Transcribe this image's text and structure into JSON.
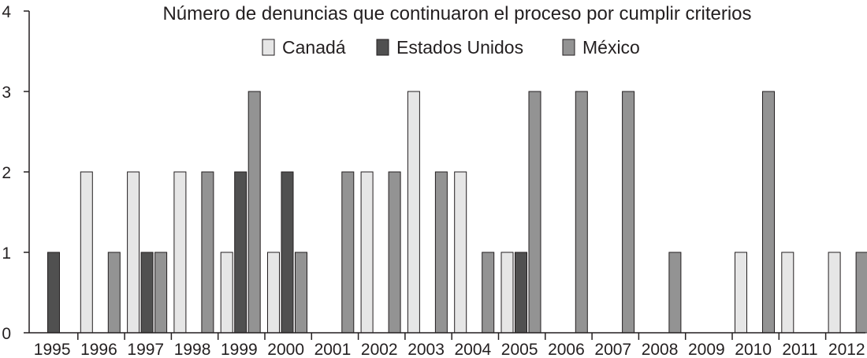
{
  "chart_data": {
    "type": "bar",
    "title": "Número de denuncias que continuaron el proceso por cumplir criterios",
    "xlabel": "",
    "ylabel": "",
    "ylim": [
      0,
      4
    ],
    "yticks": [
      "0",
      "1",
      "2",
      "3",
      "4"
    ],
    "grid": false,
    "legend_position": "top-center",
    "categories": [
      "1995",
      "1996",
      "1997",
      "1998",
      "1999",
      "2000",
      "2001",
      "2002",
      "2003",
      "2004",
      "2005",
      "2006",
      "2007",
      "2008",
      "2009",
      "2010",
      "2011",
      "2012"
    ],
    "series": [
      {
        "name": "Canadá",
        "color": "#e6e6e6",
        "values": [
          0,
          2,
          2,
          2,
          1,
          1,
          0,
          2,
          3,
          2,
          1,
          0,
          0,
          0,
          0,
          1,
          1,
          1
        ]
      },
      {
        "name": "Estados Unidos",
        "color": "#505050",
        "values": [
          1,
          0,
          1,
          0,
          2,
          2,
          0,
          0,
          0,
          0,
          1,
          0,
          0,
          0,
          0,
          0,
          0,
          0
        ]
      },
      {
        "name": "México",
        "color": "#939393",
        "values": [
          0,
          1,
          1,
          2,
          3,
          1,
          2,
          2,
          2,
          1,
          3,
          3,
          3,
          1,
          0,
          3,
          0,
          1
        ]
      }
    ]
  }
}
